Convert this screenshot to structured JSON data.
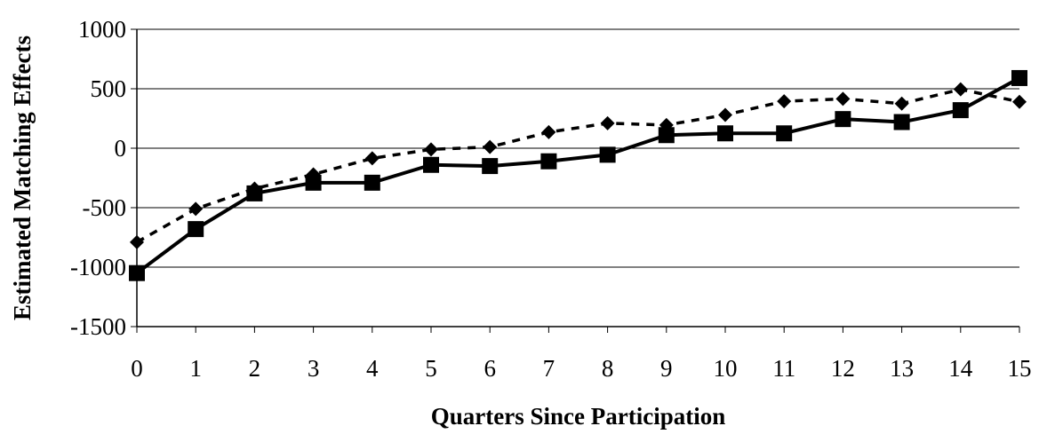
{
  "chart_data": {
    "type": "line",
    "title": "",
    "xlabel": "Quarters Since Participation",
    "ylabel": "Estimated Matching Effects",
    "x": [
      0,
      1,
      2,
      3,
      4,
      5,
      6,
      7,
      8,
      9,
      10,
      11,
      12,
      13,
      14,
      15
    ],
    "xticks": [
      "0",
      "1",
      "2",
      "3",
      "4",
      "5",
      "6",
      "7",
      "8",
      "9",
      "10",
      "11",
      "12",
      "13",
      "14",
      "15"
    ],
    "yticks": [
      "1000",
      "500",
      "0",
      "-500",
      "-1000",
      "-1500"
    ],
    "ylim": [
      -1500,
      1000
    ],
    "xlim": [
      0,
      15
    ],
    "grid": true,
    "legend": "none",
    "series": [
      {
        "marker": "square",
        "style": "solid",
        "color": "#000000",
        "values": [
          -1050,
          -680,
          -380,
          -290,
          -290,
          -140,
          -150,
          -110,
          -55,
          110,
          125,
          125,
          245,
          220,
          320,
          590
        ]
      },
      {
        "marker": "diamond",
        "style": "dashed",
        "color": "#000000",
        "values": [
          -790,
          -510,
          -340,
          -220,
          -85,
          -10,
          10,
          135,
          210,
          195,
          280,
          395,
          415,
          375,
          495,
          390
        ]
      }
    ]
  }
}
